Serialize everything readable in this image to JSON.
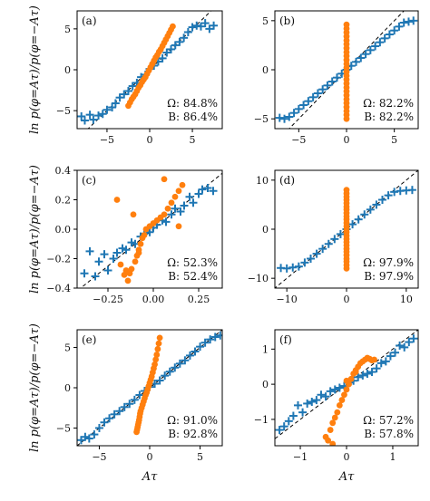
{
  "figure": {
    "ylabel": "ln p(φ=Aτ)/p(φ=−Aτ)",
    "xlabel": "Aτ",
    "colors": {
      "series_A": "#1f77b4",
      "series_B": "#ff7f0e",
      "reference": "#000000"
    },
    "marker_shapes": {
      "series_A": "plus",
      "series_B": "circle"
    }
  },
  "chart_data": [
    {
      "type": "scatter",
      "panel": "(a)",
      "xlim": [
        -8.5,
        8.5
      ],
      "ylim": [
        -7.2,
        7.2
      ],
      "xticks": [
        -5,
        0,
        5
      ],
      "yticks": [
        -5,
        0,
        5
      ],
      "xtick_labels": [
        "−5",
        "0",
        "5"
      ],
      "ytick_labels": [
        "−5",
        "0",
        "5"
      ],
      "reference_line": "y=x",
      "stats": [
        "Ω: 84.8%",
        "B: 86.4%"
      ],
      "series": [
        {
          "marker": "plus",
          "color": "#1f77b4",
          "x": [
            -8,
            -7.6,
            -7,
            -6.6,
            -6,
            -5.5,
            -5,
            -4.4,
            -4,
            -3.5,
            -3,
            -2.5,
            -2,
            -1.5,
            -1,
            -0.5,
            0,
            0.5,
            1,
            1.5,
            2,
            2.5,
            3,
            3.5,
            4,
            4.5,
            5,
            5.5,
            6,
            6.5,
            7,
            7.5
          ],
          "y": [
            -5.7,
            -6.2,
            -5.5,
            -6.1,
            -5.6,
            -5.4,
            -4.9,
            -4.6,
            -4.1,
            -3.4,
            -3.0,
            -2.6,
            -2.0,
            -1.6,
            -0.9,
            -0.6,
            0.1,
            0.5,
            1.0,
            1.4,
            2.1,
            2.5,
            3.0,
            3.4,
            3.9,
            4.6,
            5.2,
            5.4,
            5.3,
            5.7,
            5.0,
            5.4
          ]
        },
        {
          "marker": "circle",
          "color": "#ff7f0e",
          "x": [
            -2.5,
            -2.3,
            -2.1,
            -1.9,
            -1.7,
            -1.5,
            -1.3,
            -1.1,
            -0.9,
            -0.7,
            -0.5,
            -0.3,
            -0.1,
            0.1,
            0.3,
            0.5,
            0.7,
            0.9,
            1.1,
            1.3,
            1.5,
            1.7,
            1.9,
            2.1,
            2.3,
            2.5,
            2.7
          ],
          "y": [
            -4.4,
            -4.0,
            -3.6,
            -3.3,
            -3.0,
            -2.6,
            -2.2,
            -1.9,
            -1.5,
            -1.2,
            -0.9,
            -0.5,
            -0.1,
            0.3,
            0.7,
            1.1,
            1.5,
            1.8,
            2.2,
            2.5,
            2.9,
            3.3,
            3.7,
            4.1,
            4.5,
            4.9,
            5.3
          ]
        }
      ]
    },
    {
      "type": "scatter",
      "panel": "(b)",
      "xlim": [
        -7.5,
        7.5
      ],
      "ylim": [
        -6.0,
        6.0
      ],
      "xticks": [
        -5,
        0,
        5
      ],
      "yticks": [
        -5,
        0,
        5
      ],
      "xtick_labels": [
        "−5",
        "0",
        "5"
      ],
      "ytick_labels": [
        "−5",
        "0",
        "5"
      ],
      "reference_line": "y=x",
      "stats": [
        "Ω: 82.2%",
        "B: 82.2%"
      ],
      "series": [
        {
          "marker": "plus",
          "color": "#1f77b4",
          "x": [
            -7,
            -6.5,
            -6,
            -5.5,
            -5,
            -4.5,
            -4,
            -3.5,
            -3,
            -2.5,
            -2,
            -1.5,
            -1,
            -0.5,
            0,
            0.5,
            1,
            1.5,
            2,
            2.5,
            3,
            3.5,
            4,
            4.5,
            5,
            5.5,
            6,
            6.5,
            7
          ],
          "y": [
            -4.9,
            -5.0,
            -4.8,
            -4.4,
            -4.0,
            -3.6,
            -3.2,
            -2.8,
            -2.4,
            -2.0,
            -1.6,
            -1.2,
            -0.8,
            -0.4,
            0.0,
            0.4,
            0.8,
            1.2,
            1.6,
            2.0,
            2.4,
            2.8,
            3.2,
            3.6,
            4.0,
            4.4,
            4.8,
            4.9,
            5.0
          ]
        },
        {
          "marker": "circle",
          "color": "#ff7f0e",
          "x": [
            0,
            0,
            0,
            0,
            0,
            0,
            0,
            0,
            0,
            0,
            0,
            0,
            0,
            0,
            0,
            0,
            0,
            0,
            0,
            0,
            0,
            0,
            0,
            0,
            0
          ],
          "y": [
            -5.0,
            -4.6,
            -4.2,
            -3.8,
            -3.4,
            -3.0,
            -2.6,
            -2.2,
            -1.8,
            -1.4,
            -1.0,
            -0.6,
            -0.2,
            0.2,
            0.6,
            1.0,
            1.4,
            1.8,
            2.2,
            2.6,
            3.0,
            3.4,
            3.8,
            4.2,
            4.6
          ]
        }
      ]
    },
    {
      "type": "scatter",
      "panel": "(c)",
      "xlim": [
        -0.42,
        0.38
      ],
      "ylim": [
        -0.4,
        0.4
      ],
      "xticks": [
        -0.25,
        0.0,
        0.25
      ],
      "yticks": [
        -0.4,
        -0.2,
        0.0,
        0.2,
        0.4
      ],
      "xtick_labels": [
        "−0.25",
        "0.00",
        "0.25"
      ],
      "ytick_labels": [
        "−0.4",
        "−0.2",
        "0.0",
        "0.2",
        "0.4"
      ],
      "reference_line": "y=x",
      "stats": [
        "Ω: 52.3%",
        "B: 52.4%"
      ],
      "series": [
        {
          "marker": "plus",
          "color": "#1f77b4",
          "x": [
            -0.38,
            -0.35,
            -0.32,
            -0.3,
            -0.27,
            -0.25,
            -0.22,
            -0.2,
            -0.17,
            -0.15,
            -0.12,
            -0.1,
            -0.07,
            -0.05,
            -0.02,
            0.0,
            0.02,
            0.05,
            0.07,
            0.1,
            0.12,
            0.15,
            0.17,
            0.2,
            0.22,
            0.25,
            0.27,
            0.3,
            0.33
          ],
          "y": [
            -0.3,
            -0.15,
            -0.32,
            -0.22,
            -0.17,
            -0.28,
            -0.2,
            -0.16,
            -0.13,
            -0.14,
            -0.09,
            -0.1,
            -0.05,
            -0.03,
            -0.02,
            0.01,
            0.03,
            0.06,
            0.05,
            0.1,
            0.14,
            0.12,
            0.16,
            0.22,
            0.18,
            0.24,
            0.27,
            0.28,
            0.26
          ]
        },
        {
          "marker": "circle",
          "color": "#ff7f0e",
          "x": [
            -0.2,
            -0.18,
            -0.16,
            -0.15,
            -0.14,
            -0.13,
            -0.12,
            -0.11,
            -0.1,
            -0.09,
            -0.08,
            -0.07,
            -0.06,
            -0.05,
            -0.04,
            -0.02,
            0.0,
            0.02,
            0.04,
            0.06,
            0.08,
            0.1,
            0.12,
            0.14,
            0.16,
            -0.08,
            0.06,
            0.14
          ],
          "y": [
            0.2,
            -0.24,
            -0.31,
            -0.28,
            -0.35,
            -0.3,
            -0.27,
            0.1,
            -0.22,
            -0.18,
            -0.14,
            -0.1,
            -0.06,
            -0.04,
            0.0,
            0.02,
            0.04,
            0.06,
            0.08,
            0.1,
            0.14,
            0.18,
            0.22,
            0.26,
            0.3,
            -0.16,
            0.34,
            0.02
          ]
        }
      ]
    },
    {
      "type": "scatter",
      "panel": "(d)",
      "xlim": [
        -12,
        12
      ],
      "ylim": [
        -12,
        12
      ],
      "xticks": [
        -10,
        0,
        10
      ],
      "yticks": [
        -10,
        0,
        10
      ],
      "xtick_labels": [
        "−10",
        "0",
        "10"
      ],
      "ytick_labels": [
        "−10",
        "0",
        "10"
      ],
      "reference_line": "y=x",
      "stats": [
        "Ω: 97.9%",
        "B: 97.9%"
      ],
      "series": [
        {
          "marker": "plus",
          "color": "#1f77b4",
          "x": [
            -11,
            -10,
            -9,
            -8,
            -7,
            -6,
            -5,
            -4,
            -3,
            -2,
            -1,
            0,
            1,
            2,
            3,
            4,
            5,
            6,
            7,
            8,
            9,
            10,
            11
          ],
          "y": [
            -7.9,
            -8.0,
            -7.8,
            -7.6,
            -6.8,
            -6.0,
            -5.0,
            -4.0,
            -3.0,
            -2.0,
            -1.0,
            0.0,
            1.0,
            2.0,
            3.0,
            4.0,
            5.0,
            6.0,
            6.9,
            7.6,
            7.8,
            7.9,
            8.0
          ]
        },
        {
          "marker": "circle",
          "color": "#ff7f0e",
          "x": [
            0,
            0,
            0,
            0,
            0,
            0,
            0,
            0,
            0,
            0,
            0,
            0,
            0,
            0,
            0,
            0,
            0,
            0,
            0,
            0,
            0,
            0,
            0,
            0,
            0
          ],
          "y": [
            -8.0,
            -7.3,
            -6.6,
            -6.0,
            -5.3,
            -4.6,
            -4.0,
            -3.3,
            -2.6,
            -2.0,
            -1.3,
            -0.6,
            0.0,
            0.6,
            1.3,
            2.0,
            2.6,
            3.3,
            4.0,
            4.6,
            5.3,
            6.0,
            6.6,
            7.3,
            8.0
          ]
        }
      ]
    },
    {
      "type": "scatter",
      "panel": "(e)",
      "xlim": [
        -7.2,
        7.2
      ],
      "ylim": [
        -7.2,
        7.2
      ],
      "xticks": [
        -5,
        0,
        5
      ],
      "yticks": [
        -5,
        0,
        5
      ],
      "xtick_labels": [
        "−5",
        "0",
        "5"
      ],
      "ytick_labels": [
        "−5",
        "0",
        "5"
      ],
      "reference_line": "y=x",
      "stats": [
        "Ω: 91.0%",
        "B: 92.8%"
      ],
      "series": [
        {
          "marker": "plus",
          "color": "#1f77b4",
          "x": [
            -6.8,
            -6.4,
            -6,
            -5.5,
            -5,
            -4.5,
            -4,
            -3.5,
            -3,
            -2.5,
            -2,
            -1.5,
            -1,
            -0.5,
            0,
            0.5,
            1,
            1.5,
            2,
            2.5,
            3,
            3.5,
            4,
            4.5,
            5,
            5.5,
            6,
            6.5,
            7
          ],
          "y": [
            -6.5,
            -6.1,
            -6.3,
            -5.8,
            -5.0,
            -4.3,
            -3.8,
            -3.3,
            -2.9,
            -2.4,
            -2.0,
            -1.5,
            -0.9,
            -0.4,
            0.1,
            0.5,
            0.9,
            1.5,
            2.0,
            2.5,
            3.0,
            3.4,
            4.0,
            4.5,
            5.1,
            5.6,
            6.0,
            6.3,
            6.5
          ]
        },
        {
          "marker": "circle",
          "color": "#ff7f0e",
          "x": [
            -1.3,
            -1.25,
            -1.2,
            -1.15,
            -1.1,
            -1.05,
            -1.0,
            -0.95,
            -0.9,
            -0.8,
            -0.7,
            -0.6,
            -0.5,
            -0.4,
            -0.3,
            -0.2,
            -0.1,
            0.0,
            0.1,
            0.2,
            0.3,
            0.4,
            0.5,
            0.6,
            0.7,
            0.8,
            0.9,
            1.0
          ],
          "y": [
            -5.5,
            -5.2,
            -4.9,
            -4.6,
            -4.3,
            -4.0,
            -3.6,
            -3.2,
            -2.9,
            -2.5,
            -2.1,
            -1.7,
            -1.3,
            -0.9,
            -0.6,
            -0.2,
            0.2,
            0.6,
            1.0,
            1.4,
            1.9,
            2.4,
            2.9,
            3.5,
            4.1,
            4.8,
            5.5,
            6.2
          ]
        }
      ]
    },
    {
      "type": "scatter",
      "panel": "(f)",
      "xlim": [
        -1.55,
        1.55
      ],
      "ylim": [
        -1.75,
        1.55
      ],
      "xticks": [
        -1,
        0,
        1
      ],
      "yticks": [
        -1,
        0,
        1
      ],
      "xtick_labels": [
        "−1",
        "0",
        "1"
      ],
      "ytick_labels": [
        "−1",
        "0",
        "1"
      ],
      "reference_line": "y=x",
      "stats": [
        "Ω: 57.2%",
        "B: 57.8%"
      ],
      "series": [
        {
          "marker": "plus",
          "color": "#1f77b4",
          "x": [
            -1.45,
            -1.35,
            -1.25,
            -1.15,
            -1.05,
            -0.95,
            -0.85,
            -0.75,
            -0.65,
            -0.55,
            -0.45,
            -0.35,
            -0.25,
            -0.15,
            -0.05,
            0.05,
            0.15,
            0.25,
            0.35,
            0.45,
            0.55,
            0.65,
            0.75,
            0.85,
            0.95,
            1.05,
            1.15,
            1.25,
            1.35,
            1.45
          ],
          "y": [
            -1.3,
            -1.2,
            -1.05,
            -0.9,
            -0.6,
            -0.8,
            -0.55,
            -0.5,
            -0.45,
            -0.3,
            -0.35,
            -0.2,
            -0.15,
            -0.1,
            -0.05,
            0.05,
            0.1,
            0.2,
            0.25,
            0.3,
            0.35,
            0.45,
            0.6,
            0.65,
            0.8,
            0.9,
            1.1,
            1.05,
            1.2,
            1.3
          ]
        },
        {
          "marker": "circle",
          "color": "#ff7f0e",
          "x": [
            -0.45,
            -0.4,
            -0.35,
            -0.3,
            -0.25,
            -0.2,
            -0.15,
            -0.1,
            -0.05,
            0.0,
            0.05,
            0.1,
            0.15,
            0.2,
            0.25,
            0.3,
            0.35,
            0.4,
            0.45,
            0.5,
            0.55,
            0.6,
            -0.3,
            0.2,
            0.0
          ],
          "y": [
            -1.5,
            -1.6,
            -1.3,
            -1.1,
            -0.95,
            -0.8,
            -0.6,
            -0.45,
            -0.3,
            -0.15,
            0.0,
            0.15,
            0.3,
            0.4,
            0.5,
            0.6,
            0.65,
            0.7,
            0.75,
            0.72,
            0.68,
            0.7,
            -1.7,
            0.35,
            0.1
          ]
        }
      ]
    }
  ]
}
